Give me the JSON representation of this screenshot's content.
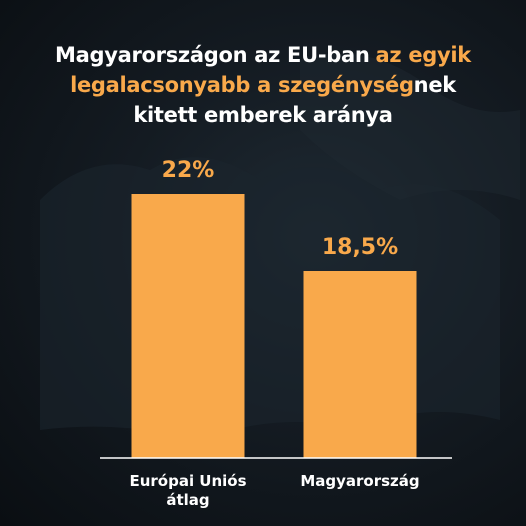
{
  "chart_data": {
    "type": "bar",
    "title_lines": [
      [
        {
          "text": "Magyarországon az EU-ban",
          "highlight": false
        },
        {
          "text": "az egyik",
          "highlight": true
        }
      ],
      [
        {
          "text": "legalacsonyabb a szegénység",
          "highlight": true
        },
        {
          "text": "nek",
          "highlight": false
        }
      ],
      [
        {
          "text": "kitett emberek aránya",
          "highlight": false
        }
      ]
    ],
    "highlight_color": "#f9a94b",
    "categories": [
      "Európai Uniós átlag",
      "Magyarország"
    ],
    "values": [
      22,
      18.5
    ],
    "value_labels": [
      "22%",
      "18,5%"
    ],
    "color": "#f9a94b",
    "ylim": [
      10,
      30
    ]
  }
}
